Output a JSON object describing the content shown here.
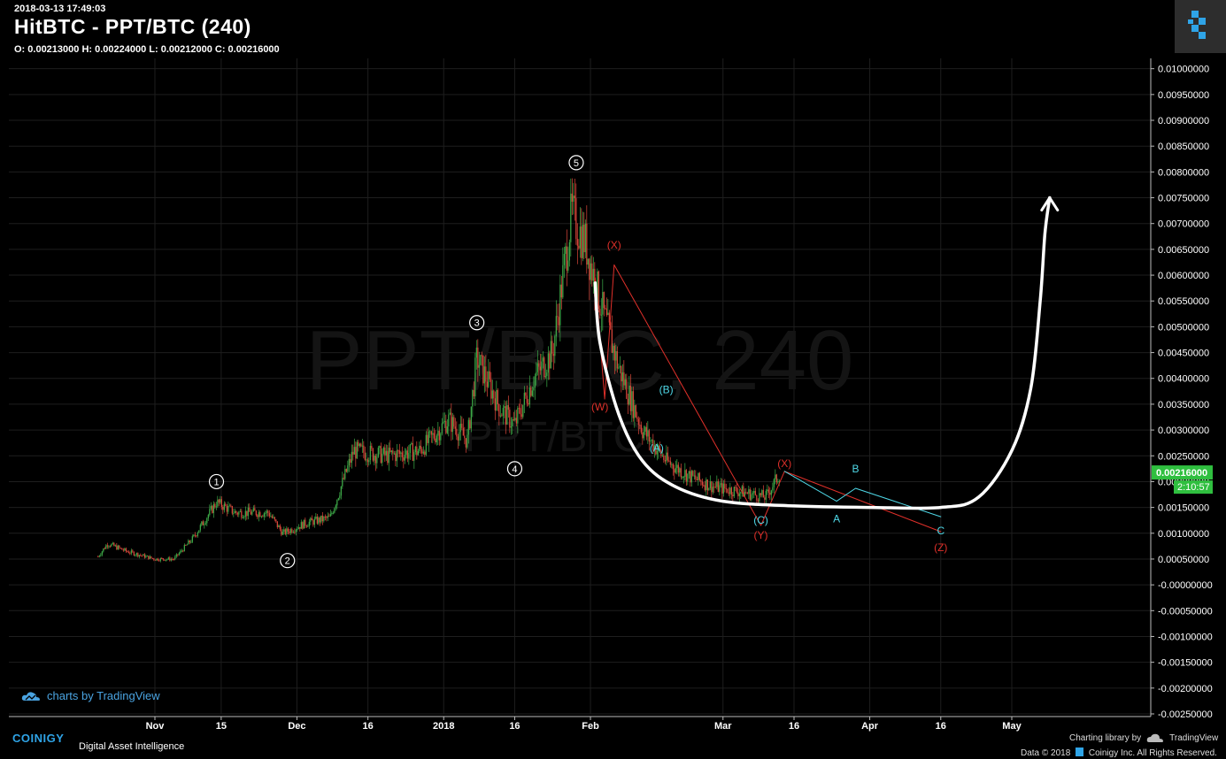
{
  "header": {
    "timestamp": "2018-03-13 17:49:03",
    "title": "HitBTC - PPT/BTC (240)",
    "ohlc": "O: 0.00213000 H: 0.00224000 L: 0.00212000 C: 0.00216000"
  },
  "watermark": {
    "big": "PPT/BTC, 240",
    "small": "PPT/BTC"
  },
  "footer": {
    "tv_brand": "charts by TradingView",
    "coinigy": "COINIGY",
    "coinigy_sub": "Digital Asset Intelligence",
    "charting_library": "Charting library by",
    "tradingview": "TradingView",
    "data_credit": "Data © 2018",
    "copyright": "Coinigy Inc. All Rights Reserved."
  },
  "colors": {
    "background": "#000000",
    "grid": "#1e1e1e",
    "up": "#3fae4a",
    "down": "#e0493c",
    "wave_red": "#e0302a",
    "wave_cyan": "#4fd9e8",
    "curve": "#ffffff",
    "price_badge": "#2fbf3f"
  },
  "price_axis": {
    "labels": [
      "0.01000000",
      "0.00950000",
      "0.00900000",
      "0.00850000",
      "0.00800000",
      "0.00750000",
      "0.00700000",
      "0.00650000",
      "0.00600000",
      "0.00550000",
      "0.00500000",
      "0.00450000",
      "0.00400000",
      "0.00350000",
      "0.00300000",
      "0.00250000",
      "0.00200000",
      "0.00150000",
      "0.00100000",
      "0.00050000",
      "-0.00000000",
      "-0.00050000",
      "-0.00100000",
      "-0.00150000",
      "-0.00200000",
      "-0.00250000"
    ],
    "current_price": "0.00216000",
    "countdown": "2:10:57"
  },
  "chart_data": {
    "type": "candlestick",
    "title": "HitBTC - PPT/BTC (240)",
    "ylim": [
      -0.0025,
      0.0102
    ],
    "x_ticks": [
      {
        "date": "2017-11-01",
        "label": "Nov"
      },
      {
        "date": "2017-11-15",
        "label": "15"
      },
      {
        "date": "2017-12-01",
        "label": "Dec"
      },
      {
        "date": "2017-12-16",
        "label": "16"
      },
      {
        "date": "2018-01-01",
        "label": "2018"
      },
      {
        "date": "2018-01-16",
        "label": "16"
      },
      {
        "date": "2018-02-01",
        "label": "Feb"
      },
      {
        "date": "2018-03-01",
        "label": "Mar"
      },
      {
        "date": "2018-03-16",
        "label": "16"
      },
      {
        "date": "2018-04-01",
        "label": "Apr"
      },
      {
        "date": "2018-04-16",
        "label": "16"
      },
      {
        "date": "2018-05-01",
        "label": "May"
      }
    ],
    "price_path": [
      {
        "date": "2017-10-20",
        "close": 0.00055
      },
      {
        "date": "2017-10-22",
        "close": 0.0008
      },
      {
        "date": "2017-10-26",
        "close": 0.00065
      },
      {
        "date": "2017-11-01",
        "close": 0.0005
      },
      {
        "date": "2017-11-05",
        "close": 0.0005
      },
      {
        "date": "2017-11-09",
        "close": 0.0009
      },
      {
        "date": "2017-11-14",
        "close": 0.0016
      },
      {
        "date": "2017-11-18",
        "close": 0.0014
      },
      {
        "date": "2017-11-25",
        "close": 0.0014
      },
      {
        "date": "2017-11-28",
        "close": 0.001
      },
      {
        "date": "2017-12-03",
        "close": 0.0012
      },
      {
        "date": "2017-12-08",
        "close": 0.0013
      },
      {
        "date": "2017-12-13",
        "close": 0.0026
      },
      {
        "date": "2017-12-20",
        "close": 0.0025
      },
      {
        "date": "2017-12-27",
        "close": 0.0026
      },
      {
        "date": "2018-01-02",
        "close": 0.0032
      },
      {
        "date": "2018-01-06",
        "close": 0.0028
      },
      {
        "date": "2018-01-08",
        "close": 0.0044
      },
      {
        "date": "2018-01-13",
        "close": 0.0034
      },
      {
        "date": "2018-01-16",
        "close": 0.0031
      },
      {
        "date": "2018-01-20",
        "close": 0.004
      },
      {
        "date": "2018-01-24",
        "close": 0.0045
      },
      {
        "date": "2018-01-28",
        "close": 0.0072
      },
      {
        "date": "2018-01-31",
        "close": 0.0066
      },
      {
        "date": "2018-02-03",
        "close": 0.0055
      },
      {
        "date": "2018-02-07",
        "close": 0.0042
      },
      {
        "date": "2018-02-12",
        "close": 0.003
      },
      {
        "date": "2018-02-17",
        "close": 0.0024
      },
      {
        "date": "2018-02-22",
        "close": 0.0021
      },
      {
        "date": "2018-02-27",
        "close": 0.0019
      },
      {
        "date": "2018-03-05",
        "close": 0.0018
      },
      {
        "date": "2018-03-10",
        "close": 0.0017
      },
      {
        "date": "2018-03-13",
        "close": 0.00216
      }
    ],
    "elliott_impulse": [
      {
        "label": "1",
        "date": "2017-11-14",
        "price": 0.002
      },
      {
        "label": "2",
        "date": "2017-11-29",
        "price": 0.00047
      },
      {
        "label": "3",
        "date": "2018-01-08",
        "price": 0.00508
      },
      {
        "label": "4",
        "date": "2018-01-16",
        "price": 0.00225
      },
      {
        "label": "5",
        "date": "2018-01-29",
        "price": 0.00818
      }
    ],
    "red_correction": [
      {
        "label": "(W)",
        "date": "2018-02-03",
        "price": 0.00345
      },
      {
        "label": "(X)",
        "date": "2018-02-06",
        "price": 0.00658
      },
      {
        "label": "(Y)",
        "date": "2018-03-09",
        "price": 0.00096
      },
      {
        "label": "(X)",
        "date": "2018-03-14",
        "price": 0.00235
      },
      {
        "label": "(Z)",
        "date": "2018-04-16",
        "price": 0.00072
      }
    ],
    "red_path": [
      {
        "date": "2018-02-02",
        "price": 0.00595
      },
      {
        "date": "2018-02-04",
        "price": 0.0036
      },
      {
        "date": "2018-02-06",
        "price": 0.0062
      },
      {
        "date": "2018-03-09",
        "price": 0.00115
      },
      {
        "date": "2018-03-14",
        "price": 0.0022
      },
      {
        "date": "2018-04-16",
        "price": 0.00103
      }
    ],
    "cyan_correction": [
      {
        "label": "(A)",
        "date": "2018-02-15",
        "price": 0.00265
      },
      {
        "label": "(B)",
        "date": "2018-02-17",
        "price": 0.00378
      },
      {
        "label": "(C)",
        "date": "2018-03-09",
        "price": 0.00125
      },
      {
        "label": "A",
        "date": "2018-03-25",
        "price": 0.00128
      },
      {
        "label": "B",
        "date": "2018-03-29",
        "price": 0.00225
      },
      {
        "label": "C",
        "date": "2018-04-16",
        "price": 0.00105
      }
    ],
    "cyan_path": [
      {
        "date": "2018-03-14",
        "price": 0.0022
      },
      {
        "date": "2018-03-25",
        "price": 0.00162
      },
      {
        "date": "2018-03-29",
        "price": 0.00187
      },
      {
        "date": "2018-04-16",
        "price": 0.00132
      }
    ],
    "projection_curve": [
      {
        "date": "2018-02-02",
        "price": 0.00585
      },
      {
        "date": "2018-02-03",
        "price": 0.0047
      },
      {
        "date": "2018-02-07",
        "price": 0.0033
      },
      {
        "date": "2018-02-12",
        "price": 0.0024
      },
      {
        "date": "2018-02-19",
        "price": 0.0019
      },
      {
        "date": "2018-03-01",
        "price": 0.00162
      },
      {
        "date": "2018-03-16",
        "price": 0.00153
      },
      {
        "date": "2018-04-01",
        "price": 0.0015
      },
      {
        "date": "2018-04-16",
        "price": 0.0015
      },
      {
        "date": "2018-04-24",
        "price": 0.0017
      },
      {
        "date": "2018-05-01",
        "price": 0.0026
      },
      {
        "date": "2018-05-05",
        "price": 0.0038
      },
      {
        "date": "2018-05-07",
        "price": 0.0055
      },
      {
        "date": "2018-05-08",
        "price": 0.0068
      },
      {
        "date": "2018-05-09",
        "price": 0.0075
      }
    ]
  }
}
